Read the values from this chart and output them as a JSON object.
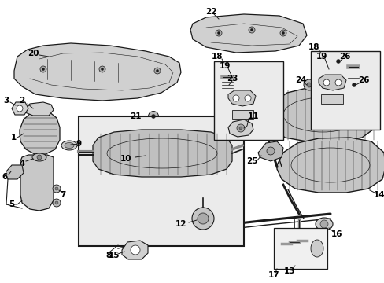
{
  "bg_color": "#ffffff",
  "line_color": "#1a1a1a",
  "parts_color": "#c8c8c8",
  "inset_bg": "#ebebeb",
  "figsize": [
    4.89,
    3.6
  ],
  "dpi": 100
}
